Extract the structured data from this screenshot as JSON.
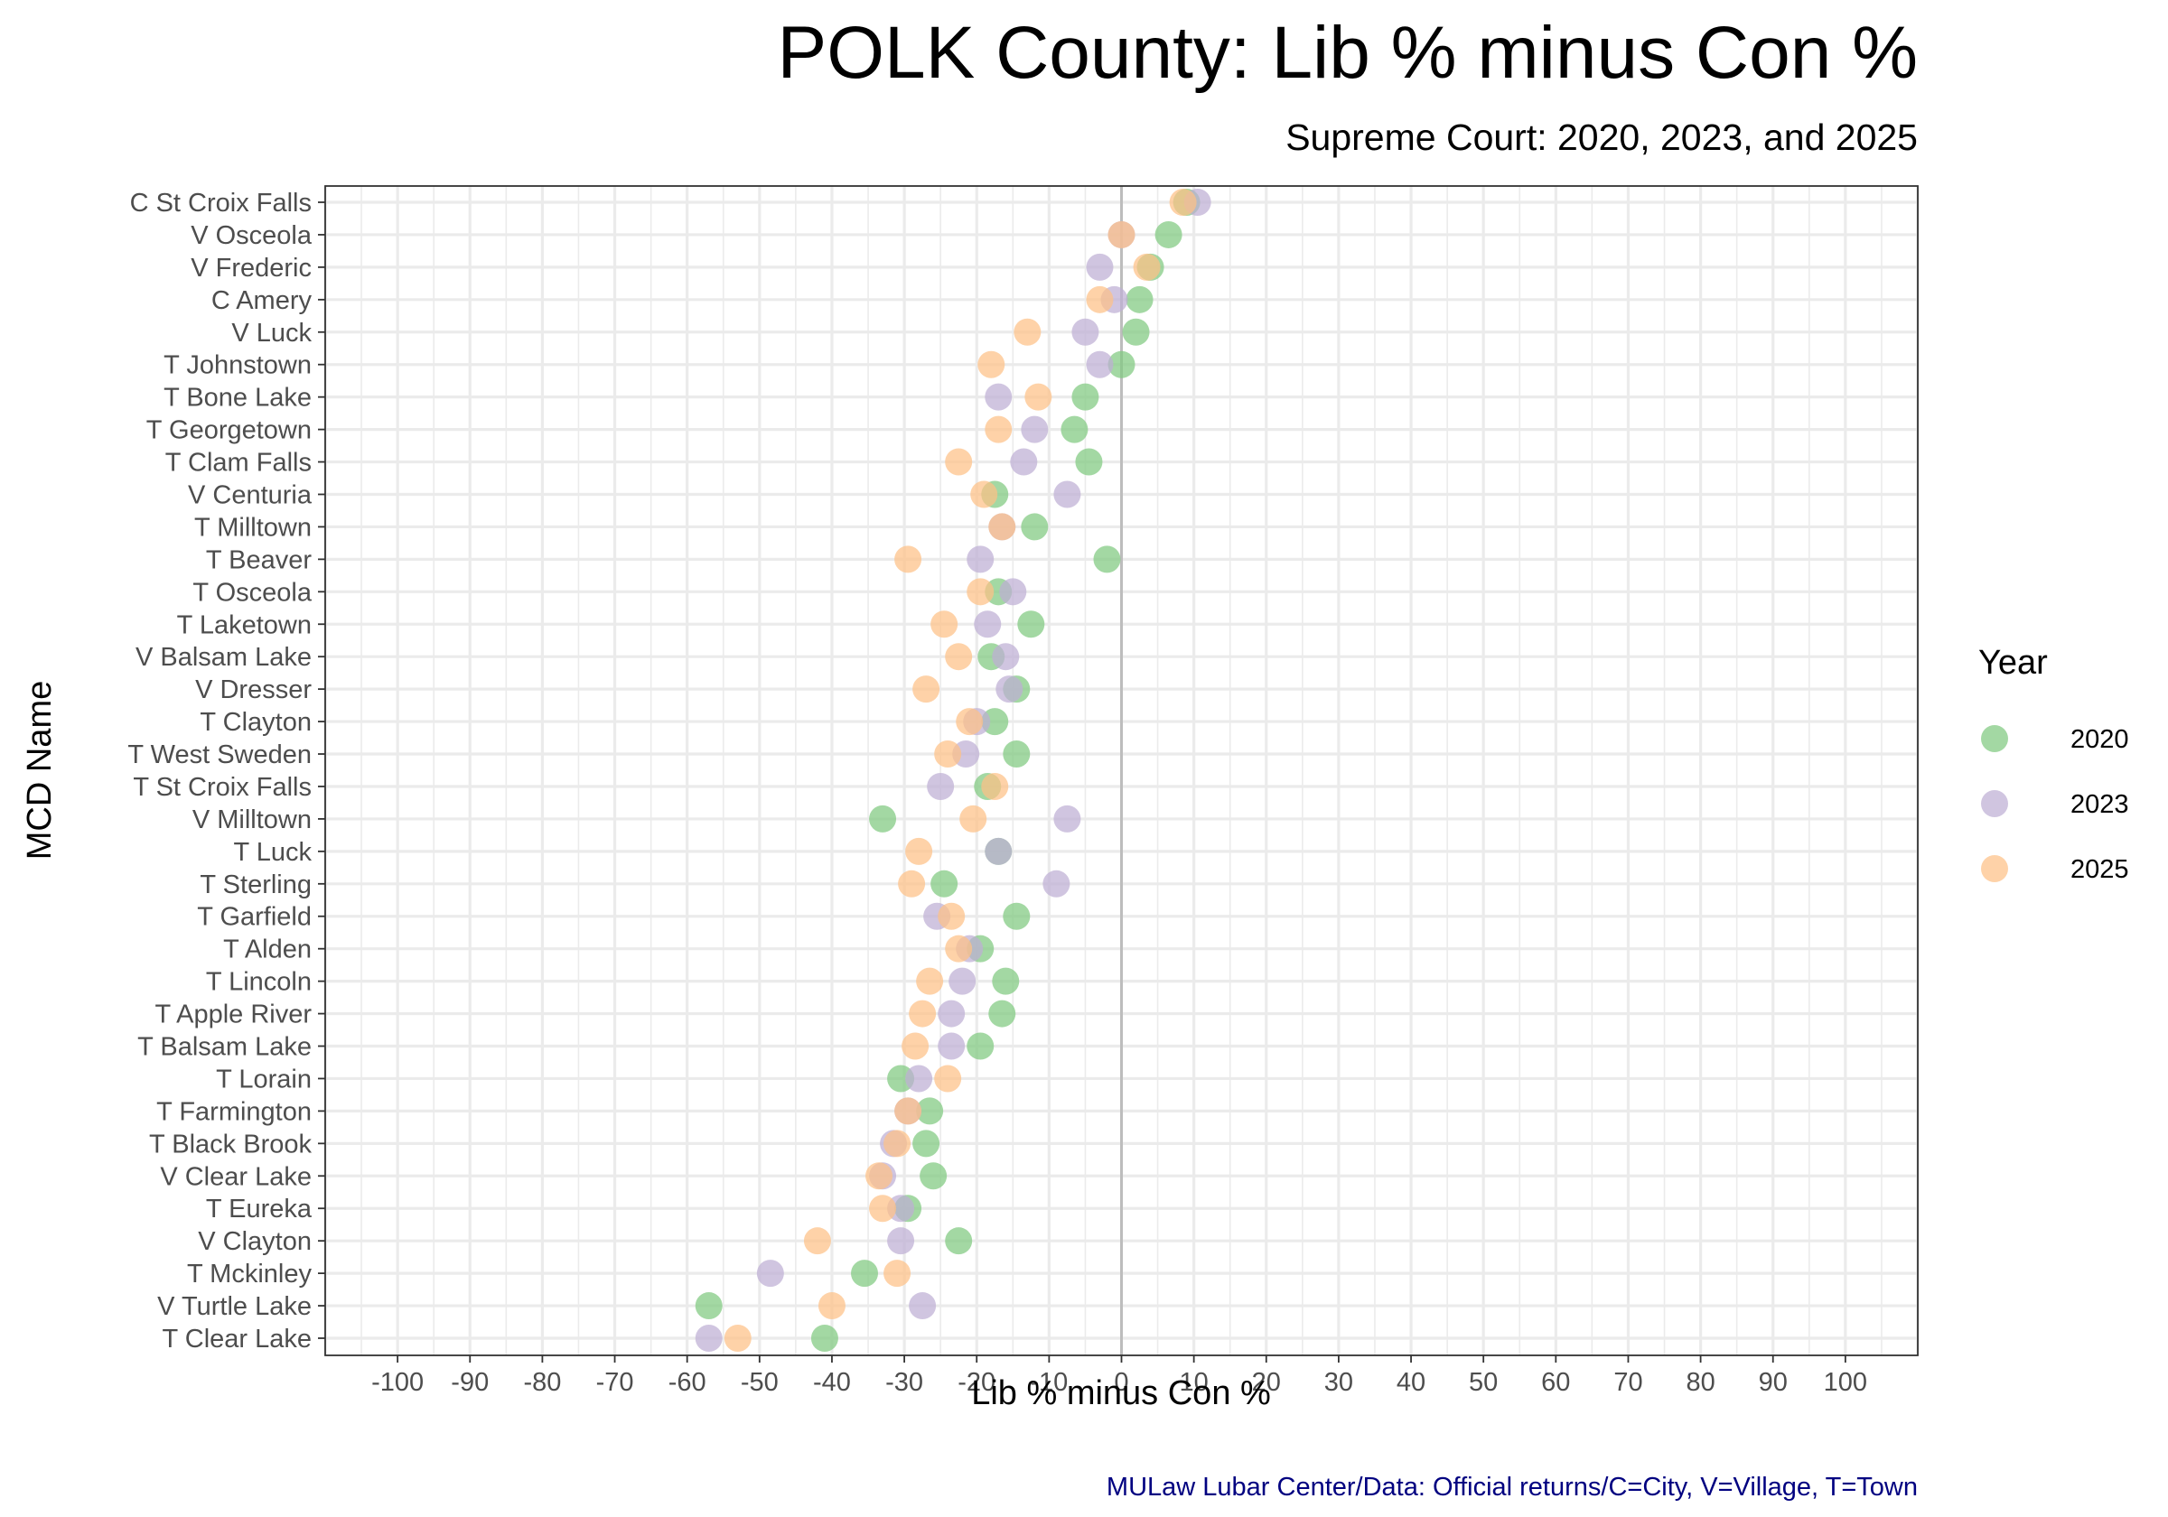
{
  "chart_data": {
    "type": "scatter",
    "title": "POLK County: Lib % minus Con %",
    "subtitle": "Supreme Court: 2020, 2023, and 2025",
    "xlabel": "Lib % minus Con %",
    "ylabel": "MCD Name",
    "caption": "MULaw Lubar Center/Data: Official returns/C=City, V=Village, T=Town",
    "xlim": [
      -110,
      110
    ],
    "x_ticks": [
      -100,
      -90,
      -80,
      -70,
      -60,
      -50,
      -40,
      -30,
      -20,
      -10,
      0,
      10,
      20,
      30,
      40,
      50,
      60,
      70,
      80,
      90,
      100
    ],
    "reference_line_x": 0,
    "grid": true,
    "legend": {
      "title": "Year",
      "position": "right",
      "entries": [
        "2020",
        "2023",
        "2025"
      ]
    },
    "colors": {
      "2020": "#7fc97f",
      "2023": "#beaed4",
      "2025": "#fdc086",
      "reference_line": "#bdbdbd",
      "caption": "#000080"
    },
    "categories": [
      "C St Croix Falls",
      "V Osceola",
      "V Frederic",
      "C Amery",
      "V Luck",
      "T Johnstown",
      "T Bone Lake",
      "T Georgetown",
      "T Clam Falls",
      "V Centuria",
      "T Milltown",
      "T Beaver",
      "T Osceola",
      "T Laketown",
      "V Balsam Lake",
      "V Dresser",
      "T Clayton",
      "T West Sweden",
      "T St Croix Falls",
      "V Milltown",
      "T Luck",
      "T Sterling",
      "T Garfield",
      "T Alden",
      "T Lincoln",
      "T Apple River",
      "T Balsam Lake",
      "T Lorain",
      "T Farmington",
      "T Black Brook",
      "V Clear Lake",
      "T Eureka",
      "V Clayton",
      "T Mckinley",
      "V Turtle Lake",
      "T Clear Lake"
    ],
    "series": [
      {
        "name": "2020",
        "values": [
          9,
          6.5,
          4,
          2.5,
          2,
          0,
          -5,
          -6.5,
          -4.5,
          -17.5,
          -12,
          -2,
          -17,
          -12.5,
          -18,
          -14.5,
          -17.5,
          -14.5,
          -18.5,
          -33,
          -17,
          -24.5,
          -14.5,
          -19.5,
          -16,
          -16.5,
          -19.5,
          -30.5,
          -26.5,
          -27,
          -26,
          -29.5,
          -22.5,
          -35.5,
          -57,
          -41
        ]
      },
      {
        "name": "2023",
        "values": [
          10.5,
          0,
          -3,
          -1,
          -5,
          -3,
          -17,
          -12,
          -13.5,
          -7.5,
          -16.5,
          -19.5,
          -15,
          -18.5,
          -16,
          -15.5,
          -20,
          -21.5,
          -25,
          -7.5,
          -17,
          -9,
          -25.5,
          -21,
          -22,
          -23.5,
          -23.5,
          -28,
          -29.5,
          -31.5,
          -33,
          -30.5,
          -30.5,
          -48.5,
          -27.5,
          -57
        ]
      },
      {
        "name": "2025",
        "values": [
          8.5,
          0,
          3.5,
          -3,
          -13,
          -18,
          -11.5,
          -17,
          -22.5,
          -19,
          -16.5,
          -29.5,
          -19.5,
          -24.5,
          -22.5,
          -27,
          -21,
          -24,
          -17.5,
          -20.5,
          -28,
          -29,
          -23.5,
          -22.5,
          -26.5,
          -27.5,
          -28.5,
          -24,
          -29.5,
          -31,
          -33.5,
          -33,
          -42,
          -31,
          -40,
          -53
        ]
      }
    ]
  }
}
